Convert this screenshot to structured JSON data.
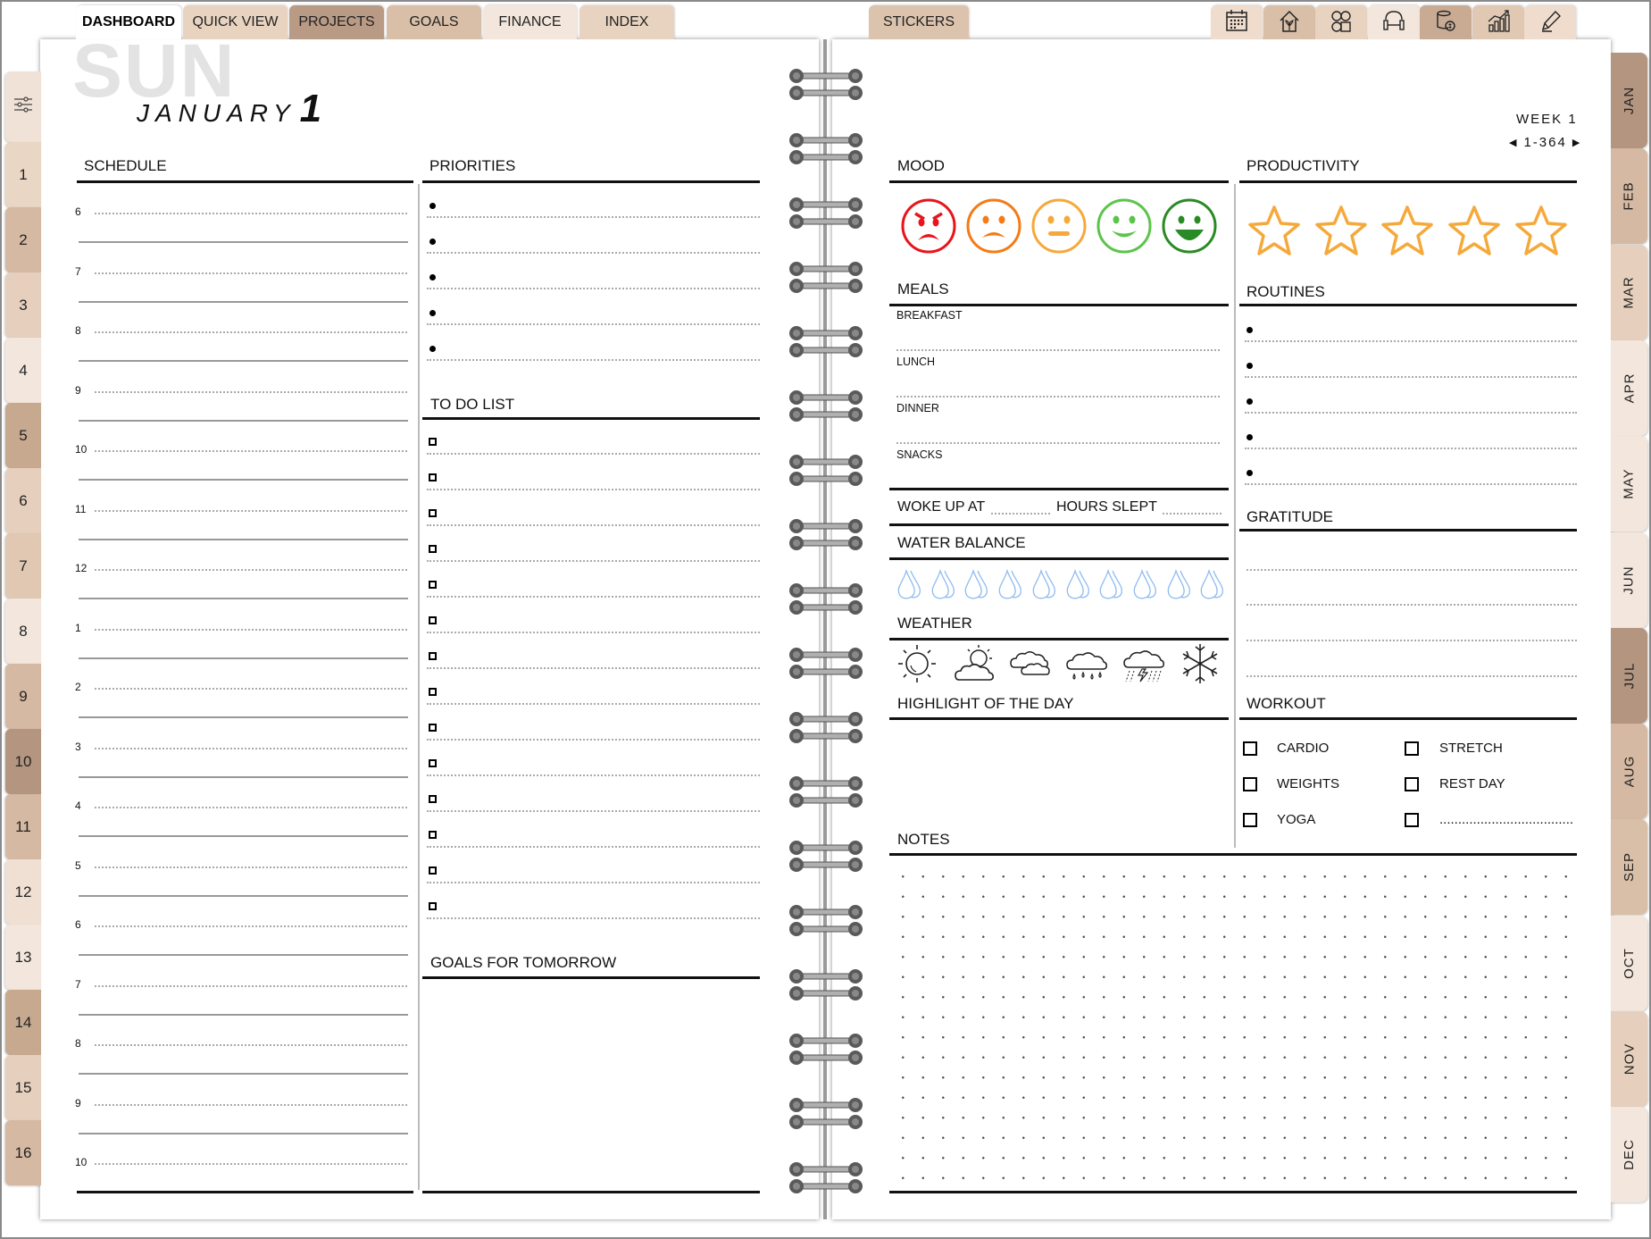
{
  "top_tabs": [
    {
      "label": "DASHBOARD",
      "active": true,
      "color": "#ffffff"
    },
    {
      "label": "QUICK VIEW",
      "color": "#e8d3c0"
    },
    {
      "label": "PROJECTS",
      "color": "#b99a84"
    },
    {
      "label": "GOALS",
      "color": "#d9bfa8"
    },
    {
      "label": "FINANCE",
      "color": "#f3e6dc"
    },
    {
      "label": "INDEX",
      "color": "#e8d3c0"
    }
  ],
  "stickers_tab": {
    "label": "STICKERS",
    "color": "#dcc3ad"
  },
  "icon_tabs": [
    {
      "icon": "calendar-icon",
      "color": "#efdccd"
    },
    {
      "icon": "home-plant-icon",
      "color": "#d9bfa8"
    },
    {
      "icon": "media-apps-icon",
      "color": "#e8d3c0"
    },
    {
      "icon": "fitness-dumbbell-icon",
      "color": "#f3e6dc"
    },
    {
      "icon": "coins-money-icon",
      "color": "#c9ab94"
    },
    {
      "icon": "growth-chart-icon",
      "color": "#e0c8b3"
    },
    {
      "icon": "pencil-icon",
      "color": "#efdccd"
    }
  ],
  "day_tabs": [
    {
      "label": "1",
      "color": "#ead6c4"
    },
    {
      "label": "2",
      "color": "#d5b9a2"
    },
    {
      "label": "3",
      "color": "#e6d0bd"
    },
    {
      "label": "4",
      "color": "#f3e6dc"
    },
    {
      "label": "5",
      "color": "#c7a990"
    },
    {
      "label": "6",
      "color": "#e6d0bd"
    },
    {
      "label": "7",
      "color": "#e0c8b3"
    },
    {
      "label": "8",
      "color": "#f3e6dc"
    },
    {
      "label": "9",
      "color": "#d5b9a2"
    },
    {
      "label": "10",
      "color": "#b39580"
    },
    {
      "label": "11",
      "color": "#d5b9a2"
    },
    {
      "label": "12",
      "color": "#f0e0d3"
    },
    {
      "label": "13",
      "color": "#f3e6dc"
    },
    {
      "label": "14",
      "color": "#c7a990"
    },
    {
      "label": "15",
      "color": "#e6d0bd"
    },
    {
      "label": "16",
      "color": "#d5b9a2"
    }
  ],
  "month_tabs": [
    {
      "label": "JAN",
      "color": "#b39580"
    },
    {
      "label": "FEB",
      "color": "#d5b9a2"
    },
    {
      "label": "MAR",
      "color": "#e6d0bd"
    },
    {
      "label": "APR",
      "color": "#f3e6dc"
    },
    {
      "label": "MAY",
      "color": "#f3e6dc"
    },
    {
      "label": "JUN",
      "color": "#f3e6dc"
    },
    {
      "label": "JUL",
      "color": "#b39580"
    },
    {
      "label": "AUG",
      "color": "#d5b9a2"
    },
    {
      "label": "SEP",
      "color": "#d9bfa8"
    },
    {
      "label": "OCT",
      "color": "#f3e6dc"
    },
    {
      "label": "NOV",
      "color": "#e6d0bd"
    },
    {
      "label": "DEC",
      "color": "#f3e6dc"
    }
  ],
  "date": {
    "weekday": "SUN",
    "month": "JANUARY",
    "day": "1"
  },
  "week": {
    "label": "WEEK 1",
    "range": "1-364"
  },
  "schedule": {
    "title": "SCHEDULE",
    "hours": [
      "6",
      "7",
      "8",
      "9",
      "10",
      "11",
      "12",
      "1",
      "2",
      "3",
      "4",
      "5",
      "6",
      "7",
      "8",
      "9",
      "10"
    ]
  },
  "priorities": {
    "title": "PRIORITIES",
    "count": 5
  },
  "todo": {
    "title": "TO DO LIST",
    "count": 14
  },
  "goals_tomorrow": {
    "title": "GOALS FOR TOMORROW"
  },
  "mood": {
    "title": "MOOD",
    "faces": [
      {
        "icon": "angry-face-icon",
        "color": "#e8141b"
      },
      {
        "icon": "sad-face-icon",
        "color": "#f47b16"
      },
      {
        "icon": "neutral-face-icon",
        "color": "#f5a93a"
      },
      {
        "icon": "smile-face-icon",
        "color": "#5cc44a"
      },
      {
        "icon": "grin-face-icon",
        "color": "#2a8a25"
      }
    ]
  },
  "productivity": {
    "title": "PRODUCTIVITY",
    "stars": 5,
    "rating": 0,
    "color": "#f5a93a"
  },
  "meals": {
    "title": "MEALS",
    "items": [
      "BREAKFAST",
      "LUNCH",
      "DINNER",
      "SNACKS"
    ]
  },
  "sleep": {
    "woke_label": "WOKE UP AT",
    "hours_label": "HOURS SLEPT"
  },
  "water": {
    "title": "WATER BALANCE",
    "drops": 10,
    "filled": 0,
    "color": "#8fbcf0"
  },
  "weather": {
    "title": "WEATHER",
    "icons": [
      "sun-icon",
      "partly-cloudy-icon",
      "cloudy-icon",
      "rain-icon",
      "thunderstorm-icon",
      "snowflake-icon"
    ]
  },
  "highlight": {
    "title": "HIGHLIGHT OF THE DAY"
  },
  "routines": {
    "title": "ROUTINES",
    "count": 5
  },
  "gratitude": {
    "title": "GRATITUDE"
  },
  "workout": {
    "title": "WORKOUT",
    "items": [
      "CARDIO",
      "STRETCH",
      "WEIGHTS",
      "REST DAY",
      "YOGA",
      "...................................."
    ]
  },
  "notes": {
    "title": "NOTES"
  }
}
